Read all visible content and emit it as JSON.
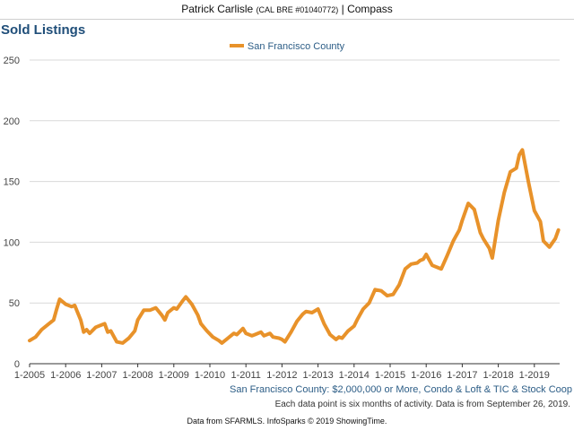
{
  "header": {
    "agent_name": "Patrick Carlisle",
    "license": "(CAL BRE #01040772)",
    "brokerage": "| Compass"
  },
  "colors": {
    "series": "#e8922a",
    "title": "#1f4e79",
    "grid": "#d9d9d9"
  },
  "chart_data": {
    "type": "line",
    "title": "Sold Listings",
    "subtitle": "San Francisco County: $2,000,000 or More, Condo & Loft & TIC & Stock Coop",
    "note": "Each data point is six months of activity. Data is from September 26, 2019.",
    "credit": "Data from SFARMLS. InfoSparks © 2019 ShowingTime.",
    "legend_position": "top-center",
    "grid": true,
    "ylim": [
      0,
      250
    ],
    "yticks": [
      0,
      50,
      100,
      150,
      200,
      250
    ],
    "xlim": [
      "2005-01",
      "2019-09"
    ],
    "xticks": [
      "1-2005",
      "1-2006",
      "1-2007",
      "1-2008",
      "1-2009",
      "1-2010",
      "1-2011",
      "1-2012",
      "1-2013",
      "1-2014",
      "1-2015",
      "1-2016",
      "1-2017",
      "1-2018",
      "1-2019"
    ],
    "series": [
      {
        "name": "San Francisco County",
        "points": [
          [
            "2005-01",
            19
          ],
          [
            "2005-03",
            22
          ],
          [
            "2005-05",
            28
          ],
          [
            "2005-07",
            32
          ],
          [
            "2005-09",
            36
          ],
          [
            "2005-10",
            45
          ],
          [
            "2005-11",
            53
          ],
          [
            "2006-01",
            49
          ],
          [
            "2006-03",
            47
          ],
          [
            "2006-04",
            48
          ],
          [
            "2006-06",
            36
          ],
          [
            "2006-07",
            26
          ],
          [
            "2006-08",
            28
          ],
          [
            "2006-09",
            25
          ],
          [
            "2006-11",
            30
          ],
          [
            "2007-01",
            32
          ],
          [
            "2007-02",
            33
          ],
          [
            "2007-03",
            26
          ],
          [
            "2007-04",
            27
          ],
          [
            "2007-06",
            18
          ],
          [
            "2007-08",
            17
          ],
          [
            "2007-10",
            21
          ],
          [
            "2007-12",
            27
          ],
          [
            "2008-01",
            36
          ],
          [
            "2008-03",
            44
          ],
          [
            "2008-05",
            44
          ],
          [
            "2008-07",
            46
          ],
          [
            "2008-09",
            40
          ],
          [
            "2008-10",
            36
          ],
          [
            "2008-11",
            42
          ],
          [
            "2009-01",
            46
          ],
          [
            "2009-02",
            45
          ],
          [
            "2009-04",
            52
          ],
          [
            "2009-05",
            55
          ],
          [
            "2009-07",
            49
          ],
          [
            "2009-09",
            40
          ],
          [
            "2009-10",
            33
          ],
          [
            "2009-12",
            27
          ],
          [
            "2010-02",
            22
          ],
          [
            "2010-04",
            19
          ],
          [
            "2010-05",
            17
          ],
          [
            "2010-07",
            21
          ],
          [
            "2010-09",
            25
          ],
          [
            "2010-10",
            24
          ],
          [
            "2010-12",
            29
          ],
          [
            "2011-01",
            25
          ],
          [
            "2011-03",
            23
          ],
          [
            "2011-04",
            24
          ],
          [
            "2011-06",
            26
          ],
          [
            "2011-07",
            23
          ],
          [
            "2011-09",
            25
          ],
          [
            "2011-10",
            22
          ],
          [
            "2011-12",
            21
          ],
          [
            "2012-01",
            20
          ],
          [
            "2012-02",
            18
          ],
          [
            "2012-04",
            26
          ],
          [
            "2012-06",
            35
          ],
          [
            "2012-08",
            41
          ],
          [
            "2012-09",
            43
          ],
          [
            "2012-11",
            42
          ],
          [
            "2013-01",
            45
          ],
          [
            "2013-03",
            33
          ],
          [
            "2013-05",
            24
          ],
          [
            "2013-07",
            20
          ],
          [
            "2013-08",
            22
          ],
          [
            "2013-09",
            21
          ],
          [
            "2013-11",
            27
          ],
          [
            "2014-01",
            31
          ],
          [
            "2014-02",
            36
          ],
          [
            "2014-04",
            45
          ],
          [
            "2014-06",
            50
          ],
          [
            "2014-08",
            61
          ],
          [
            "2014-10",
            60
          ],
          [
            "2014-12",
            56
          ],
          [
            "2015-02",
            57
          ],
          [
            "2015-04",
            65
          ],
          [
            "2015-06",
            78
          ],
          [
            "2015-08",
            82
          ],
          [
            "2015-10",
            83
          ],
          [
            "2015-11",
            85
          ],
          [
            "2015-12",
            86
          ],
          [
            "2016-01",
            90
          ],
          [
            "2016-03",
            81
          ],
          [
            "2016-05",
            79
          ],
          [
            "2016-06",
            78
          ],
          [
            "2016-08",
            89
          ],
          [
            "2016-10",
            101
          ],
          [
            "2016-12",
            110
          ],
          [
            "2017-01",
            118
          ],
          [
            "2017-03",
            132
          ],
          [
            "2017-05",
            127
          ],
          [
            "2017-07",
            108
          ],
          [
            "2017-08",
            103
          ],
          [
            "2017-10",
            95
          ],
          [
            "2017-11",
            87
          ],
          [
            "2018-01",
            118
          ],
          [
            "2018-03",
            141
          ],
          [
            "2018-05",
            158
          ],
          [
            "2018-07",
            161
          ],
          [
            "2018-08",
            172
          ],
          [
            "2018-09",
            176
          ],
          [
            "2018-11",
            150
          ],
          [
            "2019-01",
            126
          ],
          [
            "2019-03",
            117
          ],
          [
            "2019-04",
            101
          ],
          [
            "2019-06",
            96
          ],
          [
            "2019-08",
            103
          ],
          [
            "2019-09",
            110
          ],
          [
            "2019-09",
            110
          ]
        ]
      }
    ]
  }
}
